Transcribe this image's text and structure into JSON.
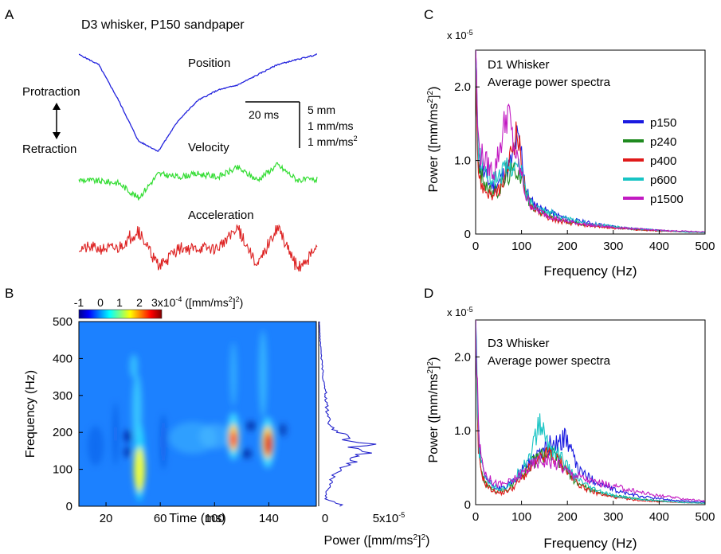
{
  "panel_a": {
    "label": "A",
    "title": "D3 whisker, P150 sandpaper",
    "position_label": "Position",
    "velocity_label": "Velocity",
    "acceleration_label": "Acceleration",
    "protraction_label": "Protraction",
    "retraction_label": "Retraction",
    "scale_time": "20 ms",
    "scale_units": [
      "5 mm",
      "1 mm/ms",
      "1 mm/ms"
    ],
    "scale_units_sup": "2"
  },
  "panel_b": {
    "label": "B",
    "colorbar_ticks": [
      "-1",
      "0",
      "1",
      "2"
    ],
    "colorbar_unit_prefix": "3x10",
    "colorbar_unit_exp": "-4",
    "colorbar_unit_open": " ([mm/ms",
    "colorbar_unit_sup": "2",
    "colorbar_unit_close": "]",
    "colorbar_unit_sup2": "2",
    "colorbar_unit_end": ")",
    "ylabel": "Frequency (Hz)",
    "xlabel": "Time (ms)",
    "yticks": [
      "0",
      "100",
      "200",
      "300",
      "400",
      "500"
    ],
    "xticks": [
      "20",
      "60",
      "100",
      "140"
    ],
    "side_xticks": [
      "0",
      "5x10"
    ],
    "side_xtick_exp": "-5",
    "side_xlabel_pre": "Power ([mm/ms",
    "side_xlabel_sup": "2",
    "side_xlabel_mid": "]",
    "side_xlabel_sup2": "2",
    "side_xlabel_end": ")"
  },
  "panel_c": {
    "label": "C",
    "multiplier": "x 10",
    "multiplier_exp": "-5",
    "title_line1": "D1 Whisker",
    "title_line2": "Average power spectra"
  },
  "panel_d": {
    "label": "D",
    "multiplier": "x 10",
    "multiplier_exp": "-5",
    "title_line1": "D3 Whisker",
    "title_line2": "Average power spectra"
  },
  "spectra_axes": {
    "yticks": [
      "0",
      "1.0",
      "2.0"
    ],
    "xticks": [
      "0",
      "100",
      "200",
      "300",
      "400",
      "500"
    ],
    "ylabel_pre": "Power ([mm/ms",
    "ylabel_sup": "2",
    "ylabel_mid": "]",
    "ylabel_sup2": "2",
    "ylabel_end": ")",
    "xlabel": "Frequency (Hz)"
  },
  "colors": {
    "p150": "#1a1ae0",
    "p240": "#1f8a1f",
    "p400": "#e01a1a",
    "p600": "#18c4c4",
    "p1500": "#c21ac2",
    "position": "#2222dd",
    "velocity": "#33dd33",
    "acceleration": "#dd2222",
    "spectrum_b": "#2222cc"
  },
  "chart_data": [
    {
      "type": "line",
      "title": "D1 Whisker Average power spectra",
      "xlabel": "Frequency (Hz)",
      "ylabel": "Power ([mm/ms2]2)",
      "y_multiplier": "x 10-5",
      "xlim": [
        0,
        500
      ],
      "ylim": [
        0,
        2.5
      ],
      "legend": "right",
      "x": [
        0,
        5,
        10,
        20,
        30,
        40,
        50,
        60,
        70,
        80,
        90,
        100,
        110,
        120,
        140,
        160,
        180,
        200,
        250,
        300,
        350,
        400,
        450,
        500
      ],
      "series": [
        {
          "name": "p150",
          "values": [
            2.5,
            1.1,
            0.9,
            0.8,
            0.7,
            0.65,
            0.7,
            0.8,
            0.9,
            1.0,
            1.3,
            1.1,
            0.6,
            0.45,
            0.35,
            0.3,
            0.25,
            0.2,
            0.15,
            0.1,
            0.07,
            0.05,
            0.03,
            0.02
          ]
        },
        {
          "name": "p240",
          "values": [
            2.5,
            1.0,
            0.8,
            0.7,
            0.6,
            0.55,
            0.6,
            0.7,
            0.8,
            0.85,
            0.9,
            0.8,
            0.55,
            0.4,
            0.3,
            0.25,
            0.2,
            0.17,
            0.12,
            0.09,
            0.06,
            0.05,
            0.03,
            0.02
          ]
        },
        {
          "name": "p400",
          "values": [
            2.5,
            0.9,
            0.7,
            0.6,
            0.55,
            0.5,
            0.6,
            0.7,
            0.9,
            1.2,
            1.4,
            1.0,
            0.5,
            0.4,
            0.3,
            0.22,
            0.18,
            0.15,
            0.11,
            0.08,
            0.06,
            0.04,
            0.03,
            0.02
          ]
        },
        {
          "name": "p600",
          "values": [
            2.5,
            1.2,
            1.0,
            0.9,
            0.8,
            0.75,
            0.8,
            0.85,
            0.9,
            0.95,
            0.9,
            0.85,
            0.55,
            0.45,
            0.35,
            0.3,
            0.25,
            0.2,
            0.14,
            0.1,
            0.07,
            0.05,
            0.03,
            0.02
          ]
        },
        {
          "name": "p1500",
          "values": [
            2.5,
            1.3,
            1.1,
            1.0,
            0.9,
            0.85,
            1.1,
            1.4,
            1.7,
            1.3,
            1.0,
            0.8,
            0.5,
            0.4,
            0.3,
            0.25,
            0.2,
            0.17,
            0.12,
            0.09,
            0.07,
            0.05,
            0.04,
            0.03
          ]
        }
      ]
    },
    {
      "type": "line",
      "title": "D3 Whisker Average power spectra",
      "xlabel": "Frequency (Hz)",
      "ylabel": "Power ([mm/ms2]2)",
      "y_multiplier": "x 10-5",
      "xlim": [
        0,
        500
      ],
      "ylim": [
        0,
        2.5
      ],
      "x": [
        0,
        5,
        10,
        20,
        30,
        40,
        50,
        60,
        80,
        100,
        120,
        140,
        160,
        180,
        200,
        220,
        250,
        300,
        350,
        400,
        450,
        500
      ],
      "series": [
        {
          "name": "p150",
          "values": [
            2.5,
            1.0,
            0.6,
            0.4,
            0.3,
            0.25,
            0.22,
            0.22,
            0.3,
            0.45,
            0.6,
            0.7,
            0.8,
            0.85,
            0.9,
            0.5,
            0.35,
            0.2,
            0.12,
            0.08,
            0.05,
            0.03
          ]
        },
        {
          "name": "p240",
          "values": [
            2.5,
            0.9,
            0.5,
            0.3,
            0.25,
            0.2,
            0.18,
            0.18,
            0.25,
            0.4,
            0.55,
            0.65,
            0.7,
            0.6,
            0.45,
            0.3,
            0.2,
            0.12,
            0.08,
            0.05,
            0.03,
            0.02
          ]
        },
        {
          "name": "p400",
          "values": [
            2.5,
            0.8,
            0.5,
            0.3,
            0.22,
            0.18,
            0.16,
            0.16,
            0.22,
            0.35,
            0.5,
            0.6,
            0.7,
            0.6,
            0.45,
            0.3,
            0.18,
            0.1,
            0.06,
            0.04,
            0.03,
            0.02
          ]
        },
        {
          "name": "p600",
          "values": [
            2.5,
            1.0,
            0.6,
            0.4,
            0.3,
            0.25,
            0.22,
            0.22,
            0.3,
            0.5,
            0.7,
            1.1,
            0.8,
            0.7,
            0.5,
            0.35,
            0.22,
            0.12,
            0.08,
            0.05,
            0.03,
            0.02
          ]
        },
        {
          "name": "p1500",
          "values": [
            2.5,
            1.2,
            0.7,
            0.45,
            0.35,
            0.3,
            0.28,
            0.28,
            0.32,
            0.42,
            0.52,
            0.6,
            0.6,
            0.55,
            0.45,
            0.4,
            0.32,
            0.25,
            0.18,
            0.12,
            0.08,
            0.05
          ]
        }
      ]
    },
    {
      "type": "line",
      "title": "",
      "xlabel": "Power ([mm/ms2]2)",
      "ylabel": "Frequency (Hz)",
      "xlim": [
        0,
        5
      ],
      "ylim": [
        0,
        500
      ],
      "x_multiplier": "x10-5",
      "x": [
        0,
        20,
        50,
        80,
        100,
        120,
        140,
        150,
        160,
        170,
        180,
        190,
        200,
        220,
        250,
        300,
        350,
        400,
        450,
        500
      ],
      "series": [
        {
          "name": "",
          "values": [
            1.6,
            0.5,
            0.7,
            1.0,
            1.5,
            2.3,
            2.8,
            4.0,
            2.5,
            3.8,
            2.0,
            2.5,
            1.2,
            0.8,
            0.6,
            0.5,
            0.3,
            0.2,
            0.1,
            0.05
          ]
        }
      ]
    },
    {
      "type": "heatmap",
      "title": "",
      "xlabel": "Time (ms)",
      "ylabel": "Frequency (Hz)",
      "xlim": [
        0,
        175
      ],
      "ylim": [
        0,
        500
      ],
      "colorbar_range": [
        -1,
        3
      ],
      "colorbar_unit": "x10-4 ([mm/ms2]2)",
      "hotspots": [
        {
          "time_ms": 56,
          "freq_hz": 120,
          "level": "high"
        },
        {
          "time_ms": 46,
          "freq_hz": 300,
          "level": "medium"
        },
        {
          "time_ms": 122,
          "freq_hz": 190,
          "level": "max"
        },
        {
          "time_ms": 146,
          "freq_hz": 170,
          "level": "max"
        },
        {
          "time_ms": 100,
          "freq_hz": 190,
          "level": "medium"
        }
      ]
    },
    {
      "type": "line",
      "title": "D3 whisker, P150 sandpaper",
      "series": [
        {
          "name": "Position",
          "values": [
            0.95,
            0.85,
            0.5,
            0.1,
            0.0,
            0.3,
            0.5,
            0.6,
            0.65,
            0.75,
            0.85,
            0.9,
            0.95
          ]
        },
        {
          "name": "Velocity",
          "values": [
            0.5,
            0.48,
            0.45,
            0.2,
            0.6,
            0.55,
            0.6,
            0.55,
            0.7,
            0.5,
            0.75,
            0.5,
            0.5
          ]
        },
        {
          "name": "Acceleration",
          "values": [
            0.5,
            0.5,
            0.5,
            0.9,
            0.1,
            0.5,
            0.5,
            0.5,
            0.95,
            0.1,
            0.98,
            0.05,
            0.5
          ]
        }
      ]
    }
  ]
}
